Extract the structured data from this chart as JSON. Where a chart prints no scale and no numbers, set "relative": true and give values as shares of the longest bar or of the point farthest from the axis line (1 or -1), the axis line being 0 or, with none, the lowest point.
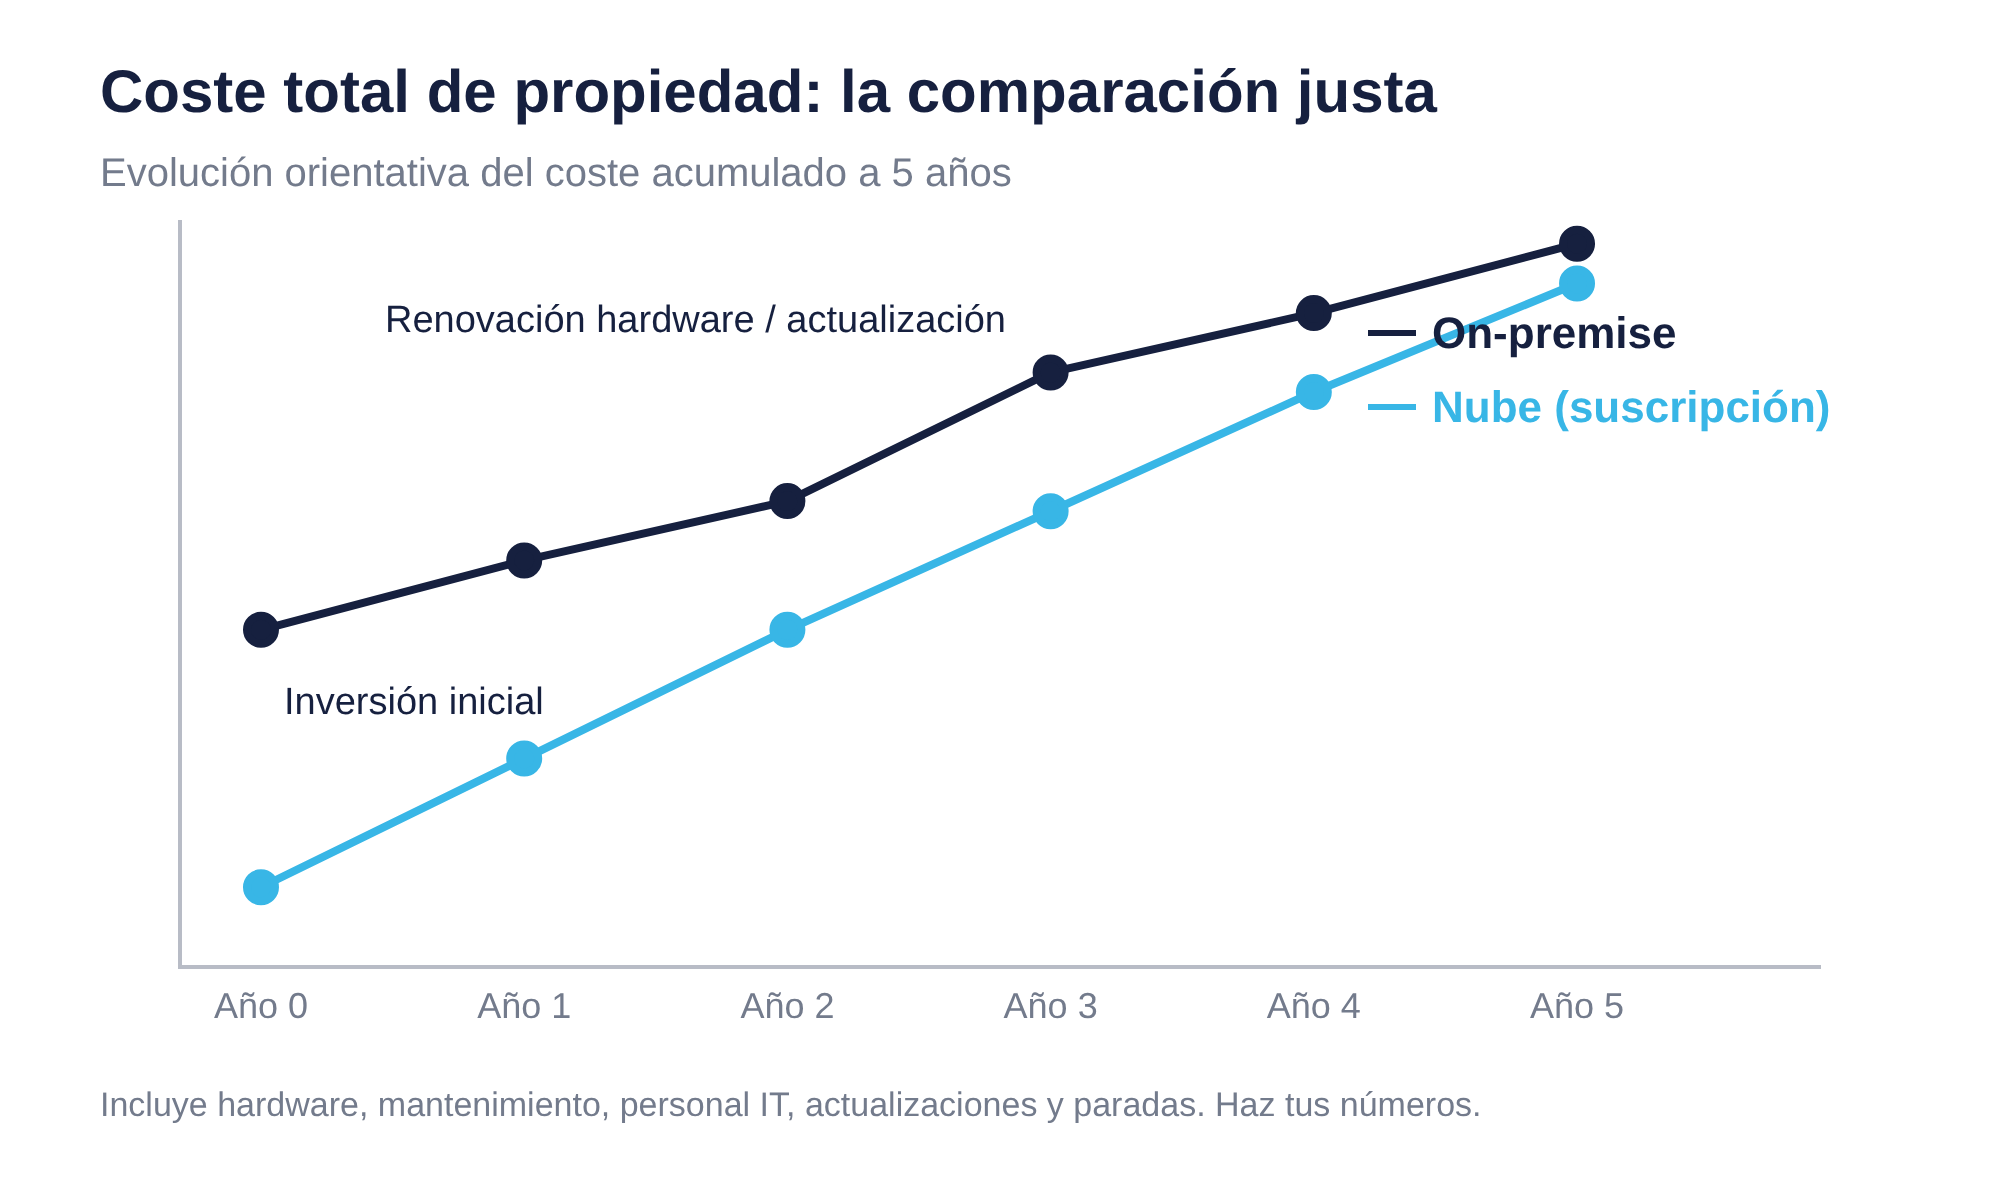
{
  "chart_data": {
    "type": "line",
    "title": "Coste total de propiedad: la comparación justa",
    "subtitle": "Evolución orientativa del coste acumulado a 5 años",
    "relative": true,
    "categories": [
      "Año 0",
      "Año 1",
      "Año 2",
      "Año 3",
      "Año 4",
      "Año 5"
    ],
    "series": [
      {
        "name": "On-premise",
        "color": "#16203f",
        "values": [
          0.466,
          0.562,
          0.644,
          0.822,
          0.904,
          1
        ]
      },
      {
        "name": "Nube (suscripción)",
        "color": "#38b6e6",
        "values": [
          0.11,
          0.288,
          0.466,
          0.63,
          0.795,
          0.945
        ]
      }
    ],
    "annotations": [
      "Renovación hardware / actualización",
      "Inversión inicial",
      "Incluye hardware, mantenimiento, personal IT, actualizaciones y paradas. Haz tus números."
    ],
    "marker": "circle",
    "line_style": "solid",
    "legend": "top right",
    "grid": false
  }
}
